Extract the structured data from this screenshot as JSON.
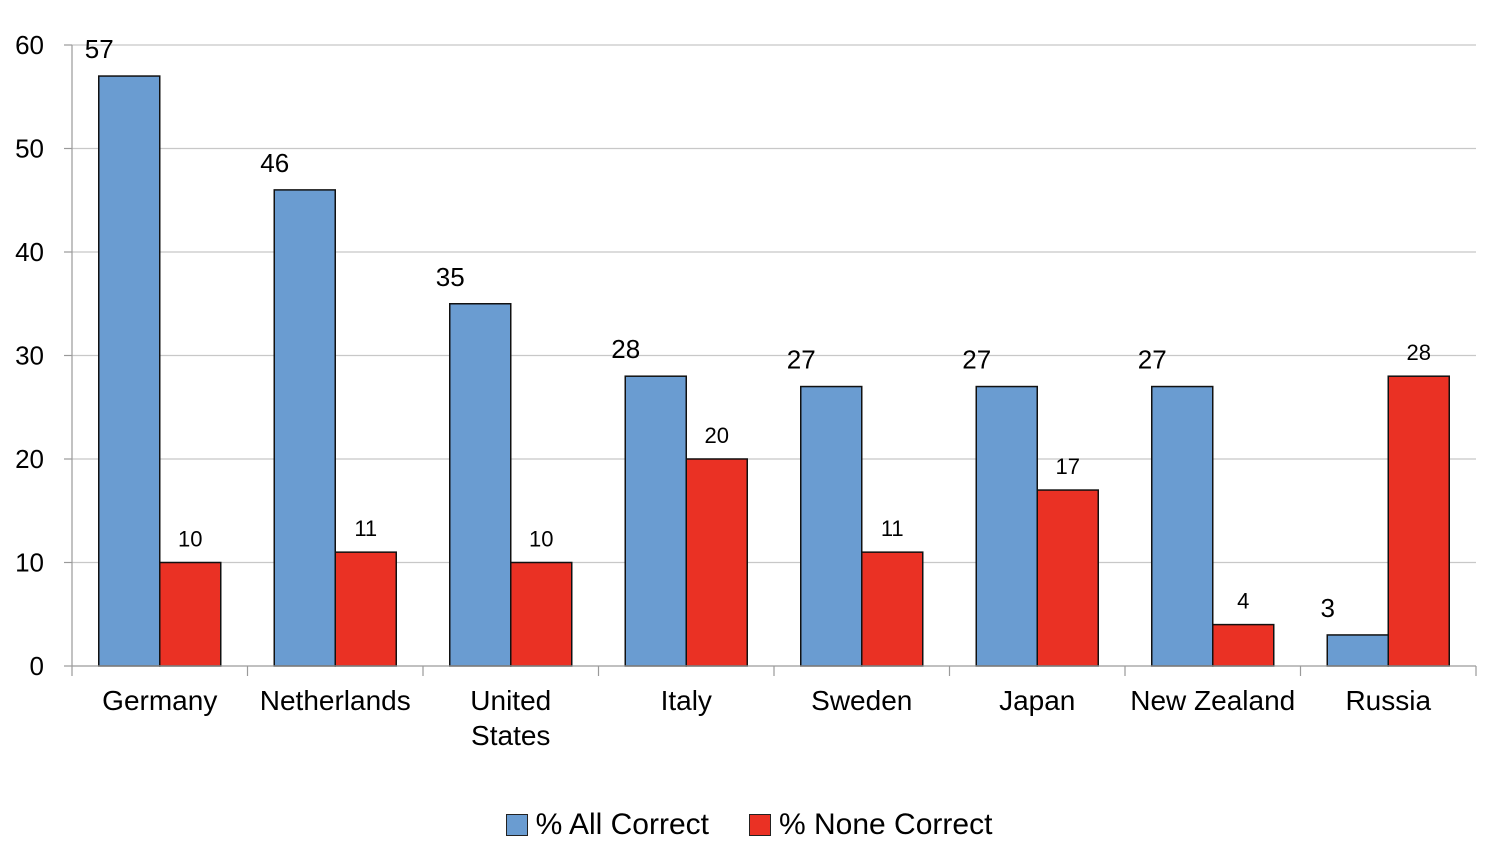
{
  "chart_data": {
    "type": "bar",
    "title": "",
    "xlabel": "",
    "ylabel": "",
    "ylim": [
      0,
      60
    ],
    "yticks": [
      "0",
      "10",
      "20",
      "30",
      "40",
      "50",
      "60"
    ],
    "grid": true,
    "legend_position": "bottom",
    "categories": [
      [
        "Germany"
      ],
      [
        "Netherlands"
      ],
      [
        "United",
        "States"
      ],
      [
        "Italy"
      ],
      [
        "Sweden"
      ],
      [
        "Japan"
      ],
      [
        "New Zealand"
      ],
      [
        "Russia"
      ]
    ],
    "series": [
      {
        "name": "% All Correct",
        "color": "#6a9cd1",
        "values": [
          57,
          46,
          35,
          28,
          27,
          27,
          27,
          3
        ]
      },
      {
        "name": "% None Correct",
        "color": "#ea3124",
        "values": [
          10,
          11,
          10,
          20,
          11,
          17,
          4,
          28
        ]
      }
    ]
  }
}
